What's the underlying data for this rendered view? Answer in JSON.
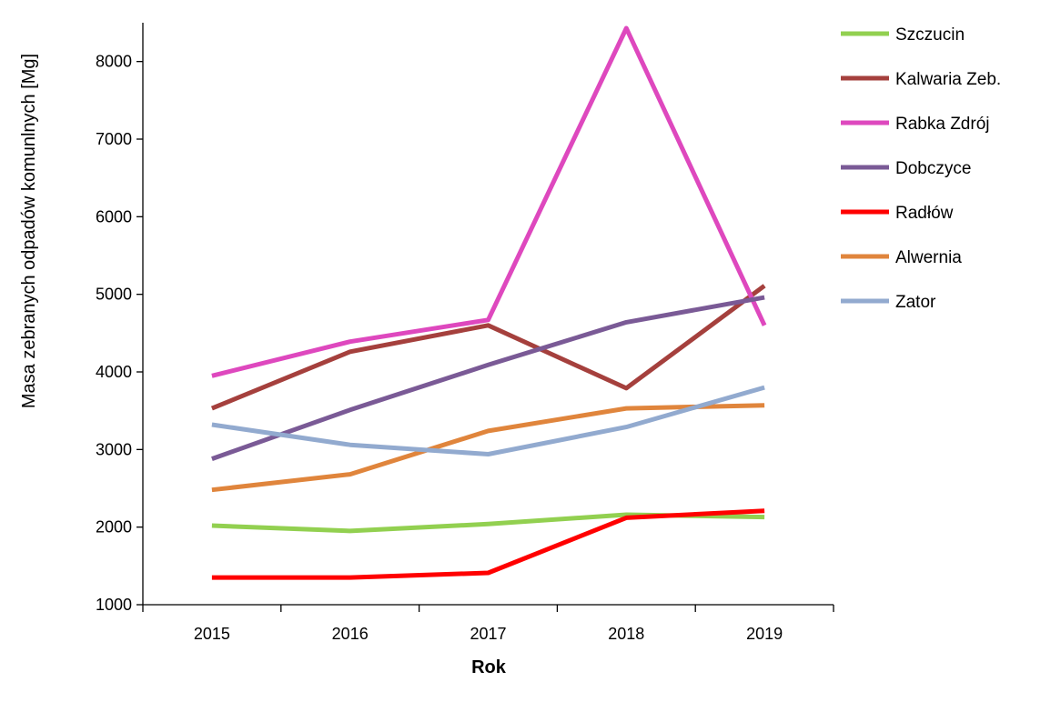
{
  "chart_data": {
    "type": "line",
    "xlabel": "Rok",
    "ylabel": "Masa zebranych odpadów komunlnych [Mg]",
    "x": [
      "2015",
      "2016",
      "2017",
      "2018",
      "2019"
    ],
    "ylim": [
      1000,
      8500
    ],
    "yticks": [
      1000,
      2000,
      3000,
      4000,
      5000,
      6000,
      7000,
      8000
    ],
    "grid": false,
    "legend_position": "right",
    "series": [
      {
        "name": "Szczucin",
        "color": "#92D050",
        "values": [
          2020,
          1950,
          2040,
          2160,
          2130
        ]
      },
      {
        "name": "Kalwaria Zeb.",
        "color": "#A5403D",
        "values": [
          3530,
          4260,
          4600,
          3790,
          5110
        ]
      },
      {
        "name": "Rabka Zdrój",
        "color": "#DE48BE",
        "values": [
          3950,
          4390,
          4670,
          8430,
          4600
        ]
      },
      {
        "name": "Dobczyce",
        "color": "#7A5A96",
        "values": [
          2880,
          3510,
          4090,
          4640,
          4960
        ]
      },
      {
        "name": "Radłów",
        "color": "#FF0000",
        "values": [
          1350,
          1350,
          1410,
          2120,
          2210
        ]
      },
      {
        "name": "Alwernia",
        "color": "#E0853C",
        "values": [
          2480,
          2680,
          3240,
          3530,
          3570
        ]
      },
      {
        "name": "Zator",
        "color": "#92AACF",
        "values": [
          3320,
          3060,
          2940,
          3290,
          3800
        ]
      }
    ]
  }
}
